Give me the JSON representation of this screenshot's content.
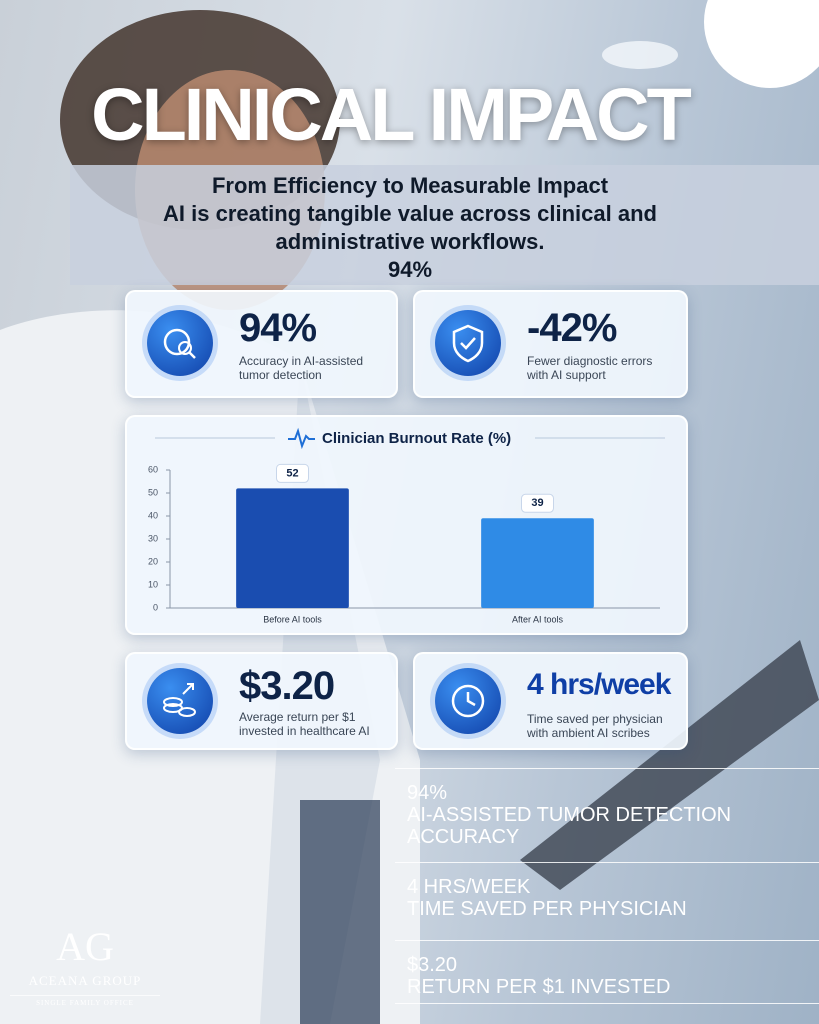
{
  "title": "CLINICAL IMPACT",
  "intro": {
    "lines": [
      "From Efficiency to Measurable Impact",
      "AI is creating tangible value across clinical and",
      "administrative workflows.",
      "94%"
    ]
  },
  "stats": [
    {
      "value": "94%",
      "label": "Accuracy in AI-assisted tumor detection"
    },
    {
      "value": "-42%",
      "label": "Fewer diagnostic errors with AI support"
    },
    {
      "value": "$3.20",
      "label": "Average return per $1 invested in healthcare AI"
    },
    {
      "value": "4 hrs/week",
      "label": "Time saved per physician with ambient AI scribes"
    }
  ],
  "chart_data": {
    "type": "bar",
    "title": "Clinician Burnout Rate (%)",
    "categories": [
      "Before AI tools",
      "After AI tools"
    ],
    "values": [
      52,
      39
    ],
    "colors": [
      "#1a4db0",
      "#2f8be6"
    ],
    "ylim": [
      0,
      60
    ],
    "yticks": [
      0,
      10,
      20,
      30,
      40,
      50,
      60
    ]
  },
  "highlights": [
    {
      "value": "94%",
      "label": "AI-ASSISTED TUMOR DETECTION ACCURACY"
    },
    {
      "value": "4 HRS/WEEK",
      "label": "TIME SAVED PER PHYSICIAN"
    },
    {
      "value": "$3.20",
      "label": "RETURN PER $1 INVESTED"
    }
  ],
  "logo": {
    "mark": "AG",
    "name": "ACEANA GROUP",
    "tagline": "SINGLE FAMILY OFFICE"
  }
}
